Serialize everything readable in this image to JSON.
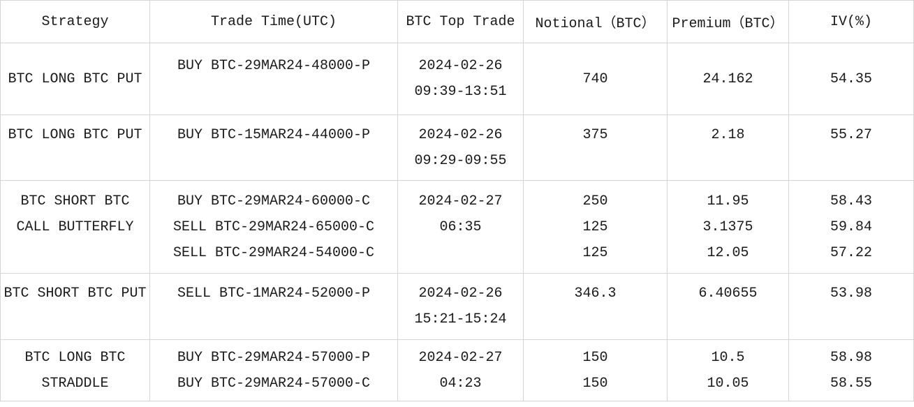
{
  "table": {
    "columns": [
      {
        "label": "Strategy"
      },
      {
        "label": "Trade Time(UTC)"
      },
      {
        "label": "BTC Top Trade"
      },
      {
        "label": "Notional（BTC）"
      },
      {
        "label": "Premium（BTC）"
      },
      {
        "label": "IV(%)"
      }
    ]
  },
  "display": {
    "rows": [
      {
        "strategy": [
          "BTC LONG BTC PUT"
        ],
        "legs": [
          "BUY BTC-29MAR24-48000-P",
          ""
        ],
        "time": [
          "2024-02-26",
          "09:39-13:51"
        ],
        "notional": [
          "740"
        ],
        "premium": [
          "24.162"
        ],
        "iv": [
          "54.35"
        ]
      },
      {
        "strategy": [
          "BTC LONG BTC PUT",
          ""
        ],
        "legs": [
          "BUY BTC-15MAR24-44000-P",
          ""
        ],
        "time": [
          "2024-02-26",
          "09:29-09:55"
        ],
        "notional": [
          "375",
          ""
        ],
        "premium": [
          "2.18",
          ""
        ],
        "iv": [
          "55.27",
          ""
        ]
      },
      {
        "strategy": [
          "BTC SHORT BTC",
          "CALL BUTTERFLY",
          ""
        ],
        "legs": [
          "BUY BTC-29MAR24-60000-C",
          "SELL BTC-29MAR24-65000-C",
          "SELL BTC-29MAR24-54000-C"
        ],
        "time": [
          "2024-02-27",
          "06:35",
          ""
        ],
        "notional": [
          "250",
          "125",
          "125"
        ],
        "premium": [
          "11.95",
          "3.1375",
          "12.05"
        ],
        "iv": [
          "58.43",
          "59.84",
          "57.22"
        ]
      },
      {
        "strategy": [
          "BTC SHORT BTC PUT",
          ""
        ],
        "legs": [
          "SELL BTC-1MAR24-52000-P",
          ""
        ],
        "time": [
          "2024-02-26",
          "15:21-15:24"
        ],
        "notional": [
          "346.3",
          ""
        ],
        "premium": [
          "6.40655",
          ""
        ],
        "iv": [
          "53.98",
          ""
        ]
      },
      {
        "strategy": [
          "BTC LONG BTC",
          "STRADDLE"
        ],
        "legs": [
          "BUY BTC-29MAR24-57000-P",
          "BUY BTC-29MAR24-57000-C"
        ],
        "time": [
          "2024-02-27",
          "04:23"
        ],
        "notional": [
          "150",
          "150"
        ],
        "premium": [
          "10.5",
          "10.05"
        ],
        "iv": [
          "58.98",
          "58.55"
        ]
      }
    ]
  },
  "chart_data": {
    "type": "table",
    "title": "",
    "columns": [
      "Strategy",
      "Trade Time(UTC)",
      "BTC Top Trade",
      "Notional（BTC）",
      "Premium（BTC）",
      "IV(%)"
    ],
    "rows": [
      {
        "strategy": "BTC LONG BTC PUT",
        "legs": [
          "BUY BTC-29MAR24-48000-P"
        ],
        "trade_time": "2024-02-26 09:39-13:51",
        "notional_btc": [
          740
        ],
        "premium_btc": [
          24.162
        ],
        "iv_pct": [
          54.35
        ]
      },
      {
        "strategy": "BTC LONG BTC PUT",
        "legs": [
          "BUY BTC-15MAR24-44000-P"
        ],
        "trade_time": "2024-02-26 09:29-09:55",
        "notional_btc": [
          375
        ],
        "premium_btc": [
          2.18
        ],
        "iv_pct": [
          55.27
        ]
      },
      {
        "strategy": "BTC SHORT BTC CALL BUTTERFLY",
        "legs": [
          "BUY BTC-29MAR24-60000-C",
          "SELL BTC-29MAR24-65000-C",
          "SELL BTC-29MAR24-54000-C"
        ],
        "trade_time": "2024-02-27 06:35",
        "notional_btc": [
          250,
          125,
          125
        ],
        "premium_btc": [
          11.95,
          3.1375,
          12.05
        ],
        "iv_pct": [
          58.43,
          59.84,
          57.22
        ]
      },
      {
        "strategy": "BTC SHORT BTC PUT",
        "legs": [
          "SELL BTC-1MAR24-52000-P"
        ],
        "trade_time": "2024-02-26 15:21-15:24",
        "notional_btc": [
          346.3
        ],
        "premium_btc": [
          6.40655
        ],
        "iv_pct": [
          53.98
        ]
      },
      {
        "strategy": "BTC LONG BTC STRADDLE",
        "legs": [
          "BUY BTC-29MAR24-57000-P",
          "BUY BTC-29MAR24-57000-C"
        ],
        "trade_time": "2024-02-27 04:23",
        "notional_btc": [
          150,
          150
        ],
        "premium_btc": [
          10.5,
          10.05
        ],
        "iv_pct": [
          58.98,
          58.55
        ]
      }
    ]
  },
  "colors": {
    "border": "#d4d4d4",
    "text": "#1a1a1a",
    "background": "#ffffff"
  }
}
